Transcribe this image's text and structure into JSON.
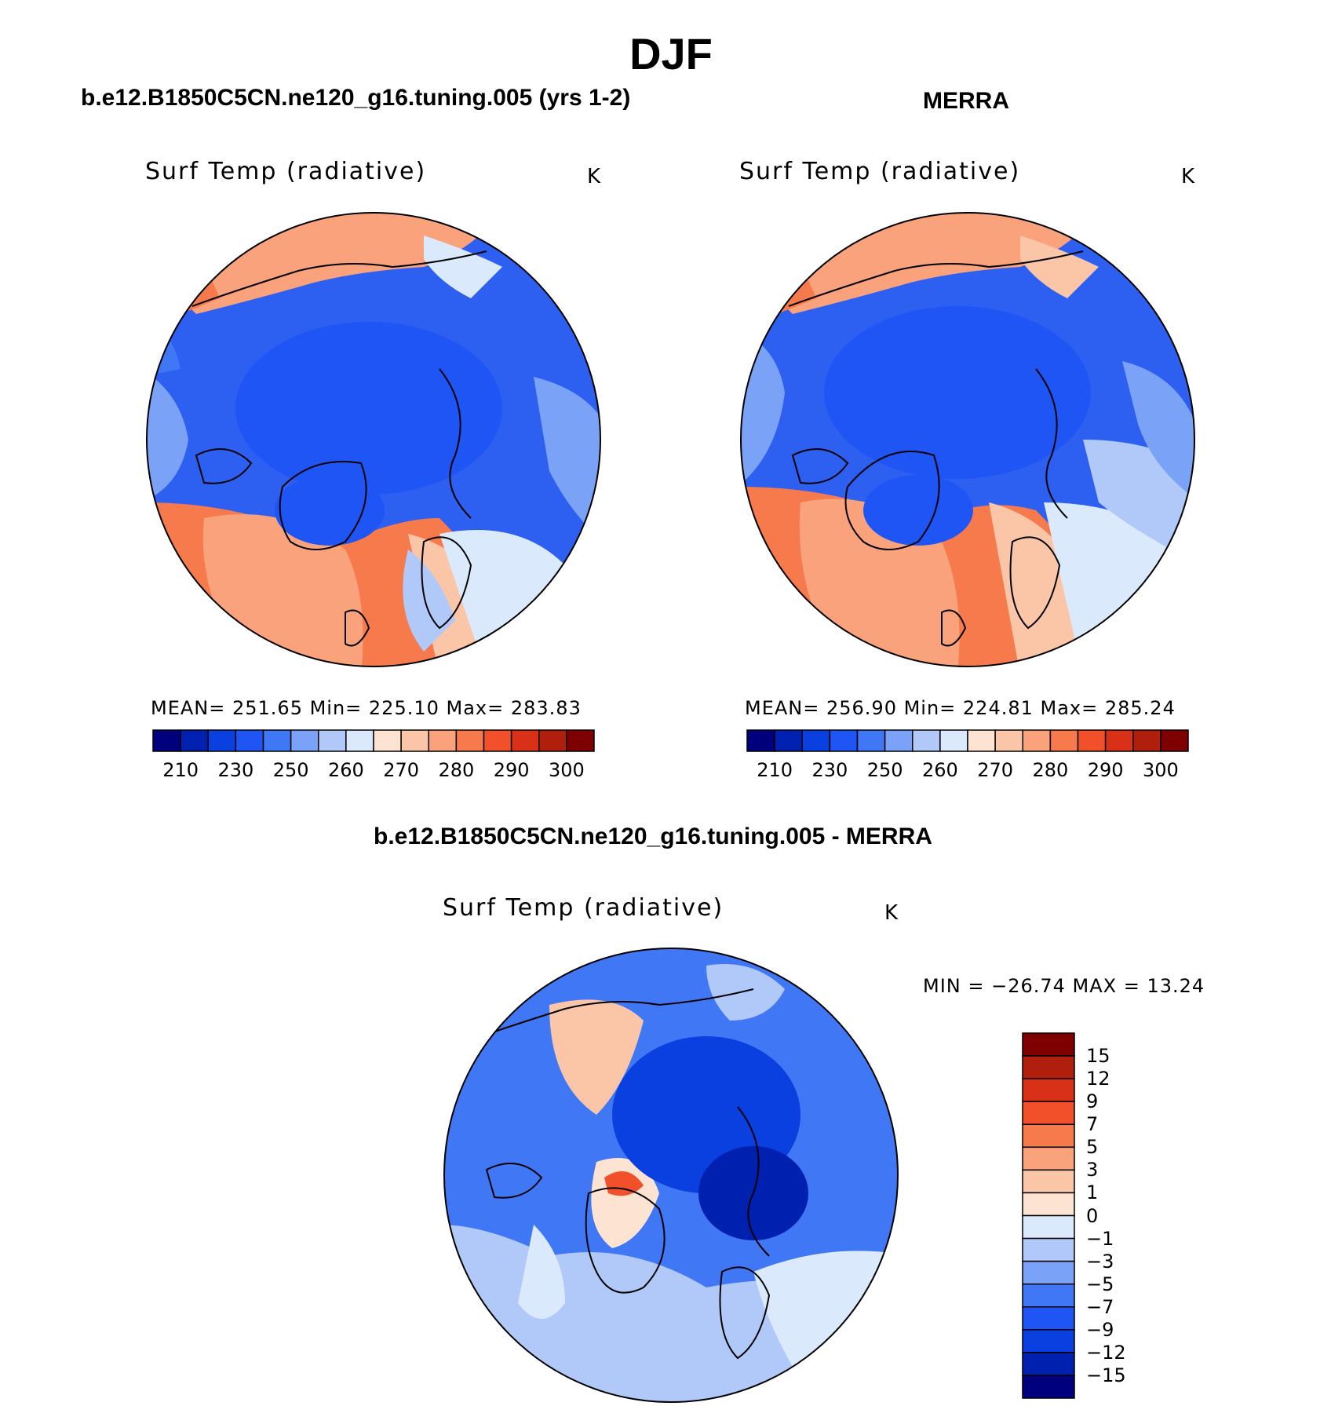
{
  "figure": {
    "title": "DJF",
    "difference_title": "b.e12.B1850C5CN.ne120_g16.tuning.005 - MERRA"
  },
  "panels": [
    {
      "id": "model",
      "title": "b.e12.B1850C5CN.ne120_g16.tuning.005 (yrs 1-2)",
      "variable": "Surf Temp (radiative)",
      "units": "K",
      "stats": "MEAN= 251.65   Min= 225.10   Max= 283.83",
      "colorbar_labels": [
        "210",
        "230",
        "250",
        "260",
        "270",
        "280",
        "290",
        "300"
      ]
    },
    {
      "id": "obs",
      "title": "MERRA",
      "variable": "Surf Temp (radiative)",
      "units": "K",
      "stats": "MEAN= 256.90   Min= 224.81   Max= 285.24",
      "colorbar_labels": [
        "210",
        "230",
        "250",
        "260",
        "270",
        "280",
        "290",
        "300"
      ]
    }
  ],
  "difference": {
    "variable": "Surf Temp (radiative)",
    "units": "K",
    "stats": "MIN = −26.74 MAX =   13.24",
    "colorbar_labels": [
      "15",
      "12",
      "9",
      "7",
      "5",
      "3",
      "1",
      "0",
      "−1",
      "−3",
      "−5",
      "−7",
      "−9",
      "−12",
      "−15"
    ]
  },
  "colors": {
    "abs_scale": [
      "#00007f",
      "#0020b0",
      "#0a3fe0",
      "#1f55f5",
      "#4077f5",
      "#7aa3f7",
      "#b0c9f8",
      "#daeafc",
      "#fde3d2",
      "#fbc6a8",
      "#f9a27b",
      "#f67a4c",
      "#f2502a",
      "#d93118",
      "#b01e0c",
      "#7f0000"
    ],
    "diff_scale": [
      "#00007f",
      "#0020b0",
      "#0a3fe0",
      "#1f55f5",
      "#4077f5",
      "#7aa3f7",
      "#b0c9f8",
      "#daeafc",
      "#fde3d2",
      "#fbc6a8",
      "#f9a27b",
      "#f67a4c",
      "#f2502a",
      "#d93118",
      "#b01e0c",
      "#7f0000"
    ]
  }
}
